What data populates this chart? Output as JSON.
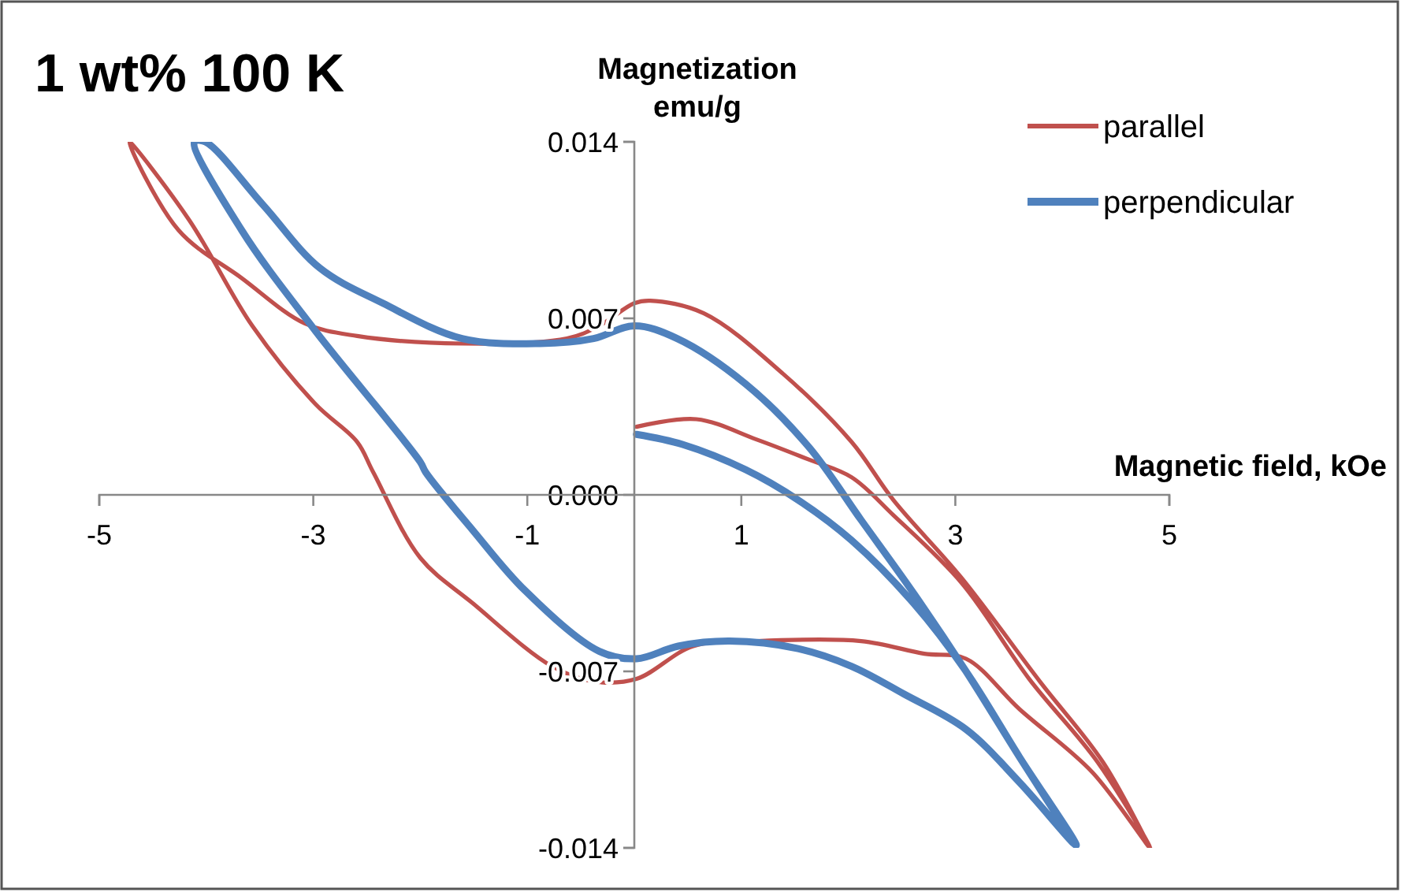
{
  "chart_data": {
    "type": "line",
    "title": "1 wt% 100 K",
    "xlabel": "Magnetic field, kOe",
    "ylabel": "Magnetization emu/g",
    "xlim": [
      -5,
      5
    ],
    "ylim": [
      -0.014,
      0.014
    ],
    "xticks": [
      -5,
      -3,
      -1,
      1,
      3,
      5
    ],
    "yticks": [
      {
        "value": -0.014,
        "label": "-0.014"
      },
      {
        "value": -0.007,
        "label": "-0.007"
      },
      {
        "value": 0,
        "label": "0.000"
      },
      {
        "value": 0.007,
        "label": "0.007"
      },
      {
        "value": 0.014,
        "label": "0.014"
      }
    ],
    "grid": false,
    "legend": "top right",
    "marker": "none",
    "line_style": "solid",
    "series": [
      {
        "name": "parallel",
        "color": "#c0504d",
        "x": [
          0.02,
          0.58,
          1.14,
          1.63,
          2.03,
          2.42,
          3.06,
          3.69,
          4.33,
          4.82,
          4.28,
          3.6,
          3.1,
          2.71,
          2.12,
          1.14,
          0.55,
          0.02,
          -0.38,
          -0.77,
          -1.51,
          -2.0,
          -2.44,
          -2.59,
          -2.98,
          -3.57,
          -4.16,
          -4.72,
          -4.26,
          -3.67,
          -3.08,
          -2.59,
          -1.61,
          -0.63,
          -0.33,
          0.0,
          0.15,
          0.65,
          1.39,
          2.03,
          2.42,
          3.06,
          3.79,
          4.38,
          4.82
        ],
        "values": [
          0.0027,
          0.003,
          0.0022,
          0.0014,
          0.0007,
          -0.0008,
          -0.0035,
          -0.0073,
          -0.0106,
          -0.014,
          -0.011,
          -0.0085,
          -0.0065,
          -0.0063,
          -0.0058,
          -0.0058,
          -0.006,
          -0.0073,
          -0.0074,
          -0.0068,
          -0.0043,
          -0.0025,
          0.0009,
          0.0021,
          0.0036,
          0.0067,
          0.0109,
          0.014,
          0.0105,
          0.0086,
          0.0068,
          0.0063,
          0.006,
          0.0062,
          0.0067,
          0.0076,
          0.0077,
          0.0072,
          0.0048,
          0.0021,
          -0.0002,
          -0.0033,
          -0.0074,
          -0.0106,
          -0.014
        ]
      },
      {
        "name": "perpendicular",
        "color": "#4f81bd",
        "x": [
          0.02,
          0.45,
          1.04,
          1.53,
          2.03,
          2.61,
          3.1,
          3.6,
          4.13,
          3.6,
          3.1,
          2.52,
          2.03,
          1.53,
          0.89,
          0.41,
          0.02,
          -0.33,
          -1.02,
          -1.51,
          -1.95,
          -2.0,
          -2.98,
          -3.67,
          -4.11,
          -4.01,
          -3.47,
          -2.94,
          -2.35,
          -1.61,
          -0.88,
          -0.38,
          0.0,
          0.4,
          1.04,
          1.63,
          2.12,
          2.61,
          3.1,
          3.6,
          4.13
        ],
        "values": [
          0.0024,
          0.002,
          0.001,
          -0.0002,
          -0.0018,
          -0.0043,
          -0.007,
          -0.0104,
          -0.0139,
          -0.0114,
          -0.0093,
          -0.0079,
          -0.0068,
          -0.0061,
          -0.0058,
          -0.006,
          -0.0065,
          -0.0062,
          -0.0038,
          -0.0014,
          0.0009,
          0.0013,
          0.0065,
          0.0105,
          0.014,
          0.014,
          0.0115,
          0.009,
          0.0076,
          0.0062,
          0.006,
          0.0062,
          0.0067,
          0.0062,
          0.0044,
          0.0019,
          -0.001,
          -0.0039,
          -0.007,
          -0.0104,
          -0.0139
        ]
      }
    ]
  }
}
